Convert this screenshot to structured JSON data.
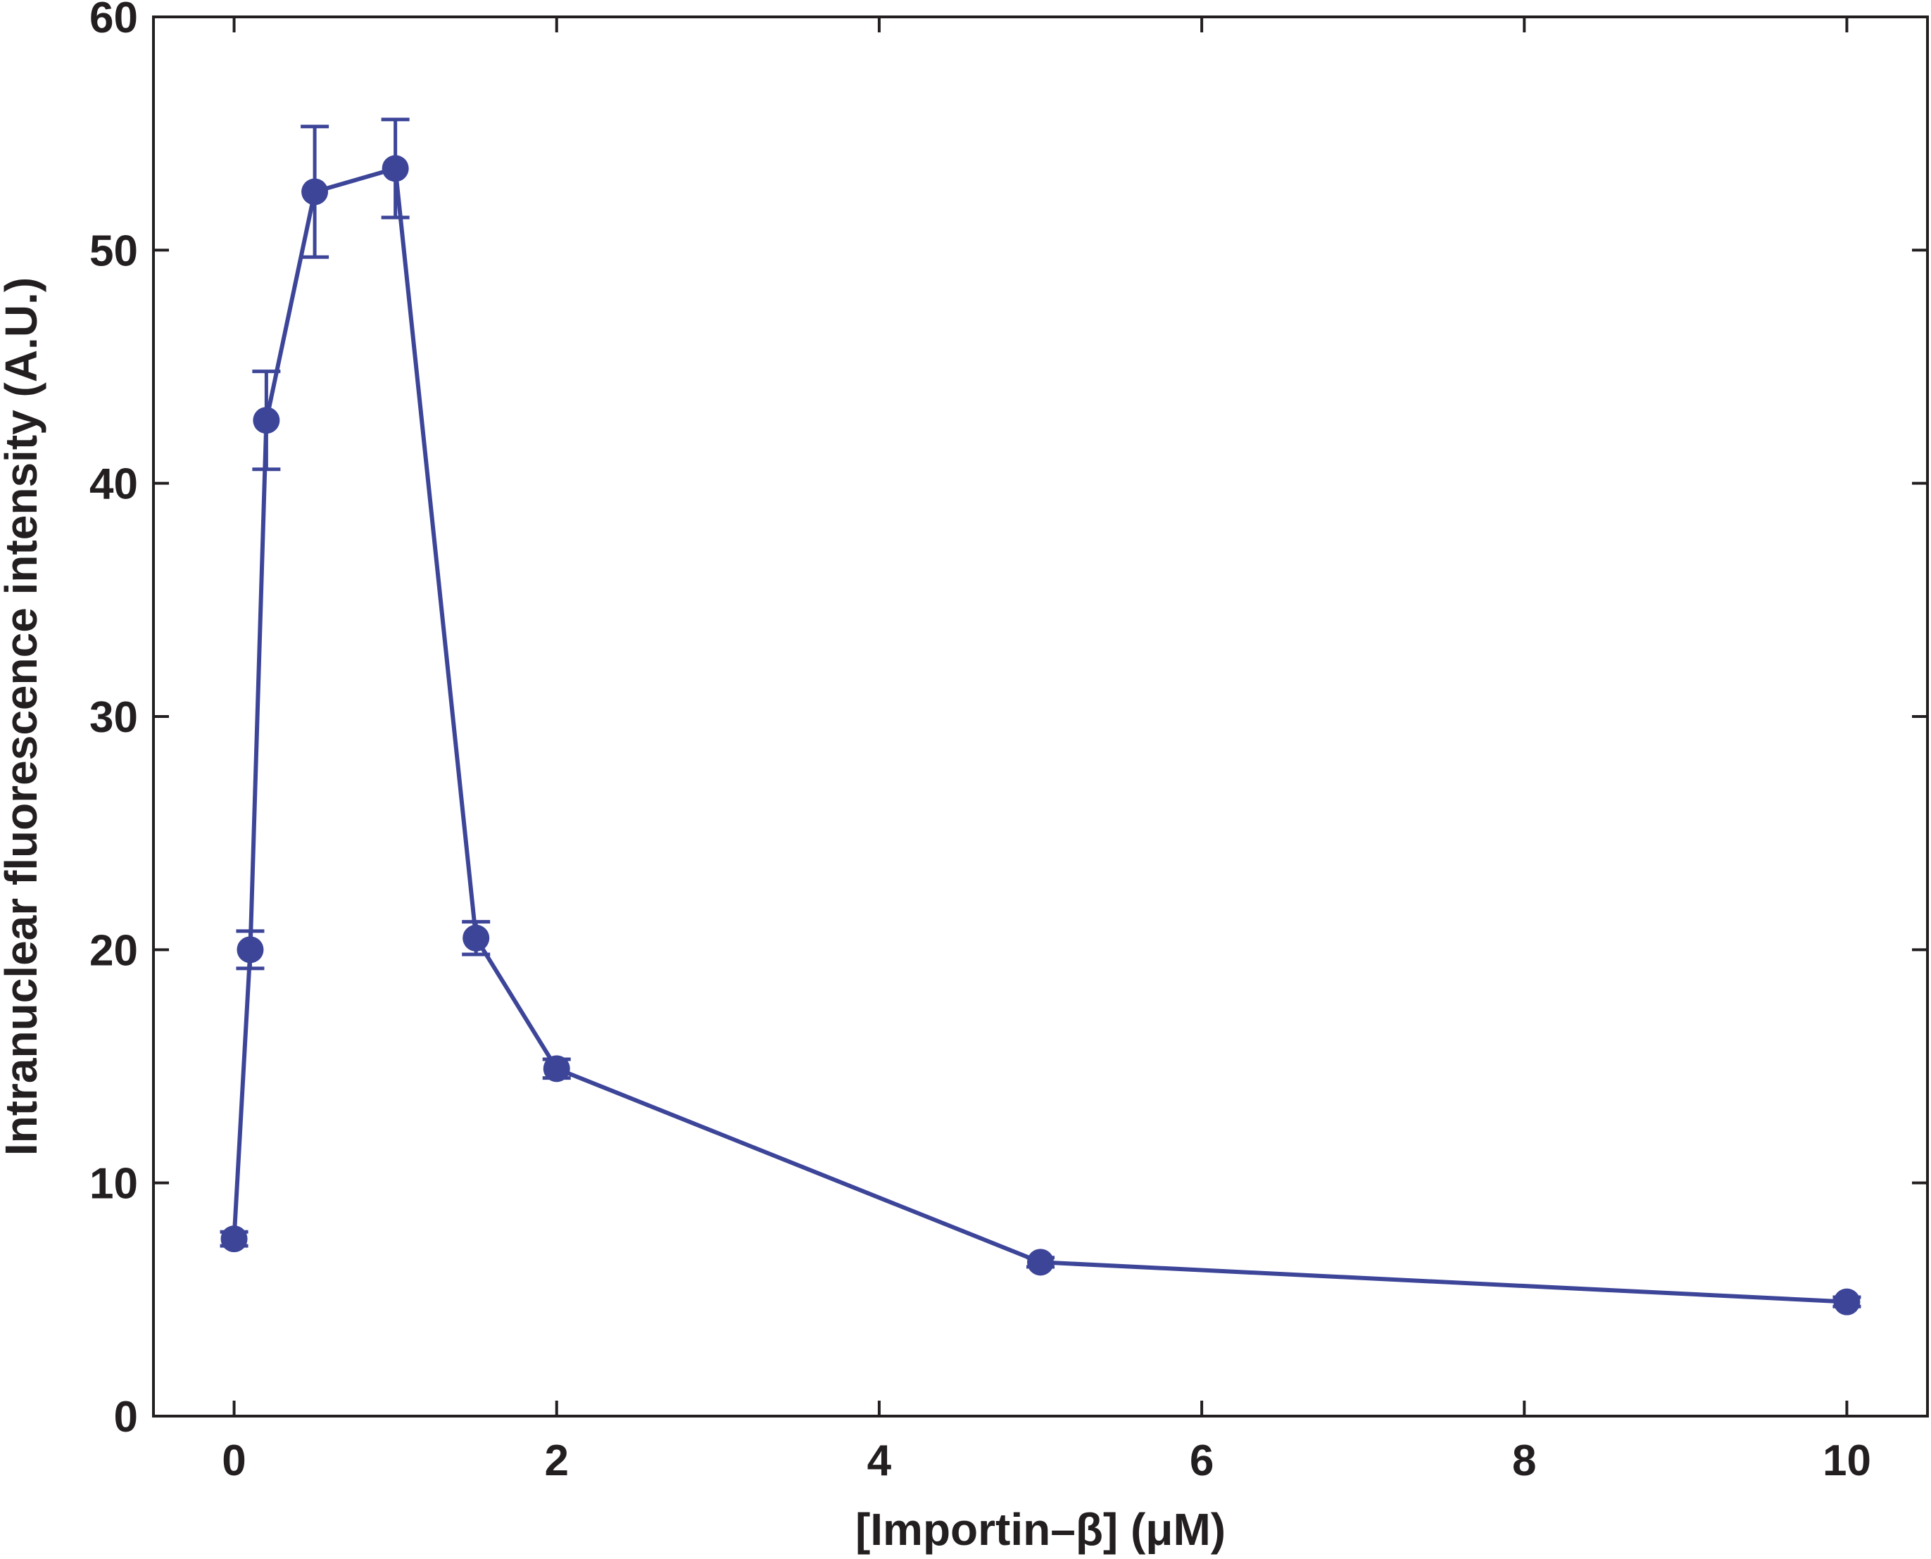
{
  "chart_data": {
    "type": "line",
    "title": "",
    "xlabel": "[Importin–β] (μM)",
    "ylabel": "Intranuclear fluorescence intensity (A.U.)",
    "xlim": [
      -0.5,
      10.5
    ],
    "ylim": [
      0,
      60
    ],
    "xticks": [
      0,
      2,
      4,
      6,
      8,
      10
    ],
    "yticks": [
      0,
      10,
      20,
      30,
      40,
      50,
      60
    ],
    "grid": false,
    "legend": "none",
    "color": "#3d4599",
    "series": [
      {
        "x": [
          0,
          0.1,
          0.2,
          0.5,
          1,
          1.5,
          2,
          5,
          10
        ],
        "y": [
          7.6,
          20.0,
          42.7,
          52.5,
          53.5,
          20.5,
          14.9,
          6.6,
          4.9
        ],
        "error": [
          0.3,
          0.8,
          2.1,
          2.8,
          2.1,
          0.7,
          0.4,
          0.2,
          0.2
        ]
      }
    ]
  }
}
